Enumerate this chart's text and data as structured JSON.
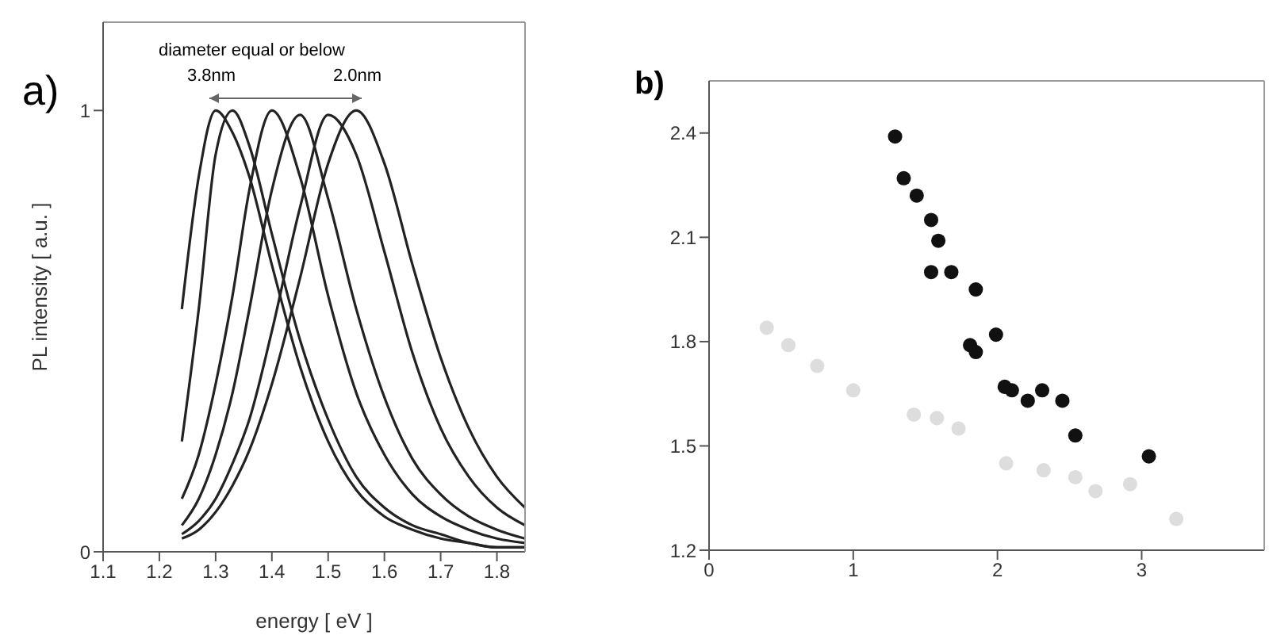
{
  "chart_data": [
    {
      "type": "line",
      "title": "a)",
      "xlabel": "energy [ eV ]",
      "ylabel": "PL intensity [ a.u. ]",
      "annotations": [
        "diameter equal or below",
        "3.8nm",
        "2.0nm"
      ],
      "x": [
        1.24,
        1.27,
        1.3,
        1.33,
        1.36,
        1.4,
        1.45,
        1.5,
        1.55,
        1.6,
        1.65,
        1.7,
        1.75,
        1.8,
        1.85
      ],
      "xlim": [
        1.1,
        1.85
      ],
      "xticks": [
        1.1,
        1.2,
        1.3,
        1.4,
        1.5,
        1.6,
        1.7,
        1.8
      ],
      "ylim": [
        0,
        1.2
      ],
      "yticks": [
        0,
        1
      ],
      "line_style": "solid",
      "marker": "none",
      "series": [
        {
          "color": "#222222",
          "values": [
            0.55,
            0.85,
            1.0,
            0.95,
            0.85,
            0.65,
            0.42,
            0.25,
            0.14,
            0.08,
            0.05,
            0.03,
            0.02,
            0.01,
            0.01
          ]
        },
        {
          "color": "#222222",
          "values": [
            0.25,
            0.55,
            0.9,
            1.0,
            0.92,
            0.72,
            0.48,
            0.3,
            0.17,
            0.1,
            0.06,
            0.04,
            0.02,
            0.01,
            0.01
          ]
        },
        {
          "color": "#222222",
          "values": [
            0.12,
            0.22,
            0.38,
            0.58,
            0.82,
            1.0,
            0.85,
            0.58,
            0.36,
            0.22,
            0.13,
            0.08,
            0.05,
            0.03,
            0.02
          ]
        },
        {
          "color": "#222222",
          "values": [
            0.06,
            0.12,
            0.22,
            0.36,
            0.55,
            0.82,
            0.99,
            0.8,
            0.55,
            0.35,
            0.21,
            0.13,
            0.08,
            0.05,
            0.03
          ]
        },
        {
          "color": "#222222",
          "values": [
            0.04,
            0.07,
            0.12,
            0.2,
            0.3,
            0.5,
            0.78,
            0.99,
            0.9,
            0.68,
            0.45,
            0.28,
            0.17,
            0.1,
            0.06
          ]
        },
        {
          "color": "#222222",
          "values": [
            0.03,
            0.05,
            0.09,
            0.15,
            0.23,
            0.38,
            0.62,
            0.88,
            1.0,
            0.88,
            0.65,
            0.44,
            0.28,
            0.17,
            0.1
          ]
        }
      ]
    },
    {
      "type": "scatter",
      "title": "b)",
      "xlim": [
        0,
        3.85
      ],
      "xticks": [
        0,
        1,
        2,
        3
      ],
      "ylim": [
        1.2,
        2.55
      ],
      "yticks": [
        1.2,
        1.5,
        1.8,
        2.1,
        2.4
      ],
      "marker": "circle",
      "series": [
        {
          "color": "#dddddd",
          "x": [
            0.4,
            0.55,
            0.75,
            1.0,
            1.42,
            1.58,
            1.73,
            2.06,
            2.32,
            2.54,
            2.68,
            2.92,
            3.24
          ],
          "values": [
            1.84,
            1.79,
            1.73,
            1.66,
            1.59,
            1.58,
            1.55,
            1.45,
            1.43,
            1.41,
            1.37,
            1.39,
            1.29
          ]
        },
        {
          "color": "#111111",
          "x": [
            1.29,
            1.35,
            1.44,
            1.54,
            1.59,
            1.54,
            1.68,
            1.85,
            1.81,
            1.85,
            1.99,
            2.05,
            2.1,
            2.21,
            2.31,
            2.45,
            2.54,
            3.05
          ],
          "values": [
            2.39,
            2.27,
            2.22,
            2.15,
            2.09,
            2.0,
            2.0,
            1.95,
            1.79,
            1.77,
            1.82,
            1.67,
            1.66,
            1.63,
            1.66,
            1.63,
            1.53,
            1.47
          ]
        }
      ]
    }
  ]
}
